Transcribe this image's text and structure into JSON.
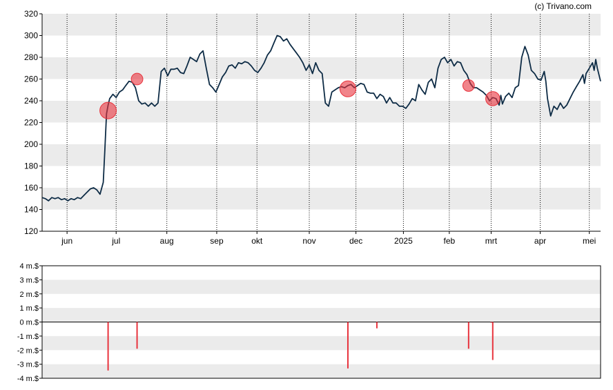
{
  "credit": "(c) Trivano.com",
  "colors": {
    "price_line": "#0d2b45",
    "insider_bubble": "#e8323c",
    "insider_bar": "#e8323c",
    "band": "#ebebeb",
    "grid": "#000000"
  },
  "chart_data": [
    {
      "type": "line",
      "title": "",
      "ylim": [
        120,
        320
      ],
      "y_ticks": [
        "120",
        "140",
        "160",
        "180",
        "200",
        "220",
        "240",
        "260",
        "280",
        "300",
        "320"
      ],
      "x_ticks": [
        {
          "label": "jun",
          "x": 15.5
        },
        {
          "label": "jul",
          "x": 46
        },
        {
          "label": "aug",
          "x": 77.5
        },
        {
          "label": "sep",
          "x": 108.5
        },
        {
          "label": "okt",
          "x": 133.5
        },
        {
          "label": "nov",
          "x": 166
        },
        {
          "label": "dec",
          "x": 195
        },
        {
          "label": "2025",
          "x": 224.5
        },
        {
          "label": "feb",
          "x": 253
        },
        {
          "label": "mrt",
          "x": 279
        },
        {
          "label": "apr",
          "x": 309.5
        },
        {
          "label": "mei",
          "x": 340
        }
      ],
      "xlim": [
        0,
        347
      ],
      "series": [
        {
          "points": [
            [
              0,
              151
            ],
            [
              2,
              150
            ],
            [
              4,
              148
            ],
            [
              6,
              151
            ],
            [
              8,
              150
            ],
            [
              10,
              151
            ],
            [
              12,
              149
            ],
            [
              14,
              150
            ],
            [
              16,
              148
            ],
            [
              18,
              150
            ],
            [
              20,
              149
            ],
            [
              22,
              151
            ],
            [
              24,
              150
            ],
            [
              26,
              153
            ],
            [
              28,
              156
            ],
            [
              30,
              159
            ],
            [
              32,
              160
            ],
            [
              34,
              158
            ],
            [
              36,
              154
            ],
            [
              38,
              165
            ],
            [
              39,
              195
            ],
            [
              40,
              228
            ],
            [
              41,
              236
            ],
            [
              42,
              242
            ],
            [
              44,
              246
            ],
            [
              46,
              243
            ],
            [
              48,
              248
            ],
            [
              50,
              250
            ],
            [
              52,
              254
            ],
            [
              54,
              258
            ],
            [
              56,
              257
            ],
            [
              58,
              252
            ],
            [
              60,
              240
            ],
            [
              62,
              237
            ],
            [
              64,
              238
            ],
            [
              66,
              235
            ],
            [
              68,
              238
            ],
            [
              70,
              235
            ],
            [
              72,
              238
            ],
            [
              74,
              267
            ],
            [
              76,
              270
            ],
            [
              78,
              263
            ],
            [
              80,
              269
            ],
            [
              82,
              269
            ],
            [
              84,
              270
            ],
            [
              86,
              266
            ],
            [
              88,
              265
            ],
            [
              90,
              272
            ],
            [
              92,
              280
            ],
            [
              94,
              278
            ],
            [
              96,
              276
            ],
            [
              98,
              283
            ],
            [
              100,
              286
            ],
            [
              102,
              270
            ],
            [
              104,
              255
            ],
            [
              106,
              252
            ],
            [
              108,
              248
            ],
            [
              110,
              255
            ],
            [
              112,
              262
            ],
            [
              114,
              266
            ],
            [
              116,
              272
            ],
            [
              118,
              273
            ],
            [
              120,
              270
            ],
            [
              122,
              275
            ],
            [
              124,
              274
            ],
            [
              126,
              276
            ],
            [
              128,
              275
            ],
            [
              130,
              272
            ],
            [
              132,
              268
            ],
            [
              134,
              266
            ],
            [
              136,
              270
            ],
            [
              138,
              275
            ],
            [
              140,
              282
            ],
            [
              142,
              286
            ],
            [
              144,
              293
            ],
            [
              146,
              300
            ],
            [
              148,
              299
            ],
            [
              150,
              295
            ],
            [
              152,
              297
            ],
            [
              154,
              292
            ],
            [
              156,
              288
            ],
            [
              158,
              284
            ],
            [
              160,
              280
            ],
            [
              162,
              275
            ],
            [
              164,
              268
            ],
            [
              166,
              273
            ],
            [
              168,
              265
            ],
            [
              170,
              275
            ],
            [
              172,
              268
            ],
            [
              174,
              265
            ],
            [
              176,
              238
            ],
            [
              178,
              235
            ],
            [
              180,
              248
            ],
            [
              182,
              250
            ],
            [
              184,
              252
            ],
            [
              186,
              253
            ],
            [
              188,
              252
            ],
            [
              190,
              254
            ],
            [
              192,
              255
            ],
            [
              194,
              252
            ],
            [
              196,
              254
            ],
            [
              198,
              256
            ],
            [
              200,
              255
            ],
            [
              202,
              248
            ],
            [
              204,
              247
            ],
            [
              206,
              247
            ],
            [
              208,
              242
            ],
            [
              210,
              246
            ],
            [
              212,
              244
            ],
            [
              214,
              238
            ],
            [
              216,
              243
            ],
            [
              218,
              238
            ],
            [
              220,
              238
            ],
            [
              222,
              235
            ],
            [
              224,
              235
            ],
            [
              226,
              233
            ],
            [
              228,
              237
            ],
            [
              230,
              242
            ],
            [
              232,
              240
            ],
            [
              234,
              255
            ],
            [
              236,
              250
            ],
            [
              238,
              246
            ],
            [
              240,
              257
            ],
            [
              242,
              260
            ],
            [
              244,
              252
            ],
            [
              246,
              270
            ],
            [
              248,
              278
            ],
            [
              250,
              280
            ],
            [
              252,
              275
            ],
            [
              254,
              278
            ],
            [
              256,
              272
            ],
            [
              258,
              276
            ],
            [
              260,
              275
            ],
            [
              262,
              268
            ],
            [
              264,
              264
            ],
            [
              266,
              256
            ],
            [
              268,
              252
            ],
            [
              270,
              252
            ],
            [
              272,
              250
            ],
            [
              274,
              248
            ],
            [
              276,
              245
            ],
            [
              278,
              240
            ],
            [
              280,
              243
            ],
            [
              282,
              242
            ],
            [
              284,
              236
            ],
            [
              285,
              245
            ],
            [
              286,
              237
            ],
            [
              288,
              244
            ],
            [
              290,
              247
            ],
            [
              292,
              243
            ],
            [
              294,
              252
            ],
            [
              296,
              254
            ],
            [
              298,
              280
            ],
            [
              300,
              290
            ],
            [
              302,
              282
            ],
            [
              304,
              268
            ],
            [
              306,
              265
            ],
            [
              308,
              260
            ],
            [
              310,
              259
            ],
            [
              312,
              267
            ],
            [
              313,
              258
            ],
            [
              314,
              242
            ],
            [
              316,
              226
            ],
            [
              318,
              235
            ],
            [
              320,
              232
            ],
            [
              322,
              238
            ],
            [
              324,
              233
            ],
            [
              326,
              236
            ],
            [
              328,
              242
            ],
            [
              330,
              248
            ],
            [
              332,
              253
            ],
            [
              334,
              258
            ],
            [
              336,
              264
            ],
            [
              337,
              256
            ],
            [
              338,
              265
            ],
            [
              340,
              270
            ],
            [
              342,
              275
            ],
            [
              343,
              268
            ],
            [
              344,
              278
            ],
            [
              345,
              270
            ],
            [
              347,
              258
            ]
          ]
        }
      ],
      "bubbles": [
        {
          "x": 41,
          "y": 231,
          "size": 1.0
        },
        {
          "x": 59,
          "y": 260,
          "size": 0.55
        },
        {
          "x": 190,
          "y": 251,
          "size": 0.95
        },
        {
          "x": 265,
          "y": 254,
          "size": 0.55
        },
        {
          "x": 280,
          "y": 242,
          "size": 0.78
        }
      ]
    },
    {
      "type": "bar",
      "ylim": [
        -4,
        4
      ],
      "y_ticks": [
        "-4 m.$",
        "-3 m.$",
        "-2 m.$",
        "-1 m.$",
        "0 m.$",
        "1 m.$",
        "2 m.$",
        "3 m.$",
        "4 m.$"
      ],
      "xlim": [
        0,
        347
      ],
      "bars": [
        {
          "x": 41,
          "value": -3.45
        },
        {
          "x": 59,
          "value": -1.9
        },
        {
          "x": 190,
          "value": -3.3
        },
        {
          "x": 208,
          "value": -0.45
        },
        {
          "x": 265,
          "value": -1.9
        },
        {
          "x": 280,
          "value": -2.7
        },
        {
          "x": 279,
          "value": -0.05
        }
      ]
    }
  ]
}
